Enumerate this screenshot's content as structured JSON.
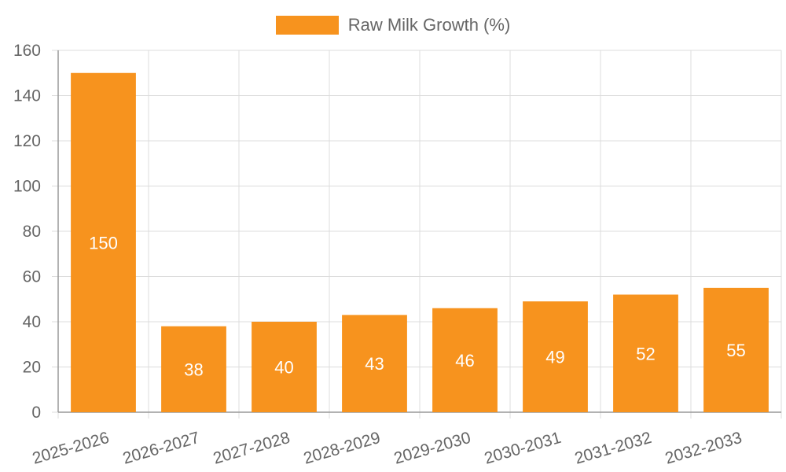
{
  "chart_data": {
    "type": "bar",
    "legend": {
      "label": "Raw Milk Growth (%)",
      "position": "top-center"
    },
    "colors": {
      "bar": "#F7931E",
      "grid": "#DCDCDC",
      "text": "#666666",
      "label": "#FFFFFF"
    },
    "categories": [
      "2025-2026",
      "2026-2027",
      "2027-2028",
      "2028-2029",
      "2029-2030",
      "2030-2031",
      "2031-2032",
      "2032-2033"
    ],
    "series": [
      {
        "name": "Raw Milk Growth (%)",
        "values": [
          150,
          38,
          40,
          43,
          46,
          49,
          52,
          55
        ]
      }
    ],
    "ylim": [
      0,
      160
    ],
    "yticks": [
      0,
      20,
      40,
      60,
      80,
      100,
      120,
      140,
      160
    ],
    "grid": true,
    "xlabel": "",
    "ylabel": ""
  }
}
